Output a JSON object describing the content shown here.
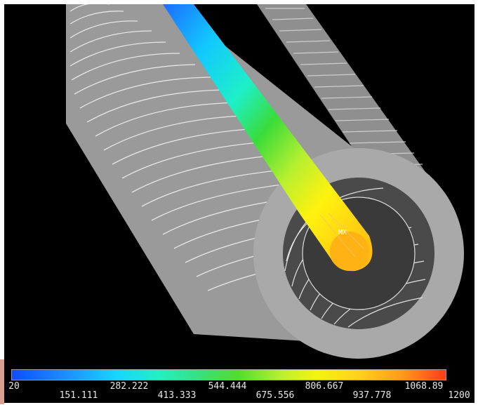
{
  "legend": {
    "colors": [
      "#0f4dff",
      "#1c8cff",
      "#16d6ff",
      "#22f0c0",
      "#38e07a",
      "#52dc2c",
      "#b8f030",
      "#f3f50e",
      "#ffd21a",
      "#ff9a18",
      "#ff3a1a"
    ],
    "ticks_top": [
      "20",
      "282.222",
      "544.444",
      "806.667",
      "1068.89"
    ],
    "ticks_bottom": [
      "151.111",
      "413.333",
      "675.556",
      "937.778",
      "1200"
    ]
  },
  "scene": {
    "cylinder_color": "#a9a9a9",
    "fin_line_color": "#e8e8e8",
    "background_color": "#000000",
    "probe_label": "MX"
  }
}
